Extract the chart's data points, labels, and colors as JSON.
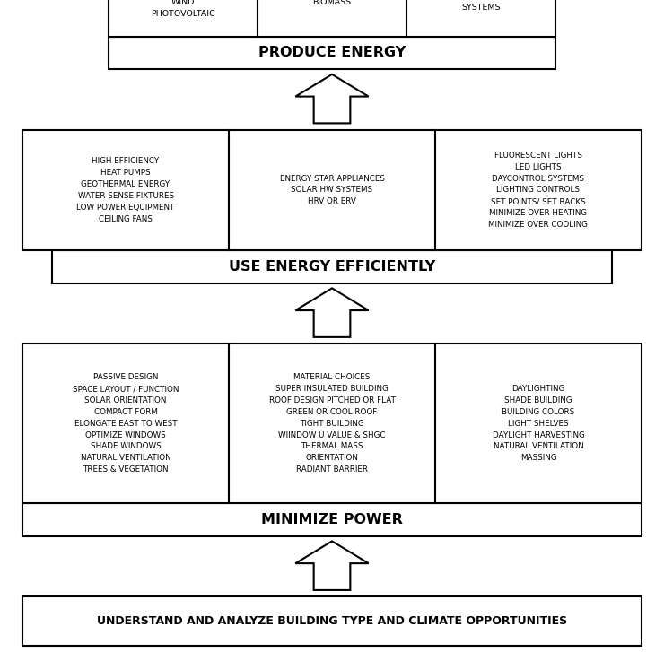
{
  "level1_header": "PRODUCE ENERGY",
  "level1_cols": [
    "RENEWABLE\nWIND\nPHOTOVOLTAIC",
    "BIOMASS",
    "SOLAR\nSYSTEMS"
  ],
  "level2_header": "USE ENERGY EFFICIENTLY",
  "level2_cols": [
    "HIGH EFFICIENCY\nHEAT PUMPS\nGEOTHERMAL ENERGY\nWATER SENSE FIXTURES\nLOW POWER EQUIPMENT\nCEILING FANS",
    "ENERGY STAR APPLIANCES\nSOLAR HW SYSTEMS\nHRV OR ERV",
    "FLUORESCENT LIGHTS\nLED LIGHTS\nDAYCONTROL SYSTEMS\nLIGHTING CONTROLS\nSET POINTS/ SET BACKS\nMINIMIZE OVER HEATING\nMINIMIZE OVER COOLING"
  ],
  "level3_header": "MINIMIZE POWER",
  "level3_cols": [
    "PASSIVE DESIGN\nSPACE LAYOUT / FUNCTION\nSOLAR ORIENTATION\nCOMPACT FORM\nELONGATE EAST TO WEST\nOPTIMIZE WINDOWS\nSHADE WINDOWS\nNATURAL VENTILATION\nTREES & VEGETATION",
    "MATERIAL CHOICES\nSUPER INSULATED BUILDING\nROOF DESIGN PITCHED OR FLAT\nGREEN OR COOL ROOF\nTIGHT BUILDING\nWIINDOW U VALUE & SHGC\nTHERMAL MASS\nORIENTATION\nRADIANT BARRIER",
    "DAYLIGHTING\nSHADE BUILDING\nBUILDING COLORS\nLIGHT SHELVES\nDAYLIGHT HARVESTING\nNATURAL VENTILATION\nMASSING"
  ],
  "bottom_label": "UNDERSTAND AND ANALYZE BUILDING TYPE AND CLIMATE OPPORTUNITIES",
  "bg_color": "#ffffff",
  "box_color": "#000000",
  "text_color": "#000000",
  "lw": 1.5
}
